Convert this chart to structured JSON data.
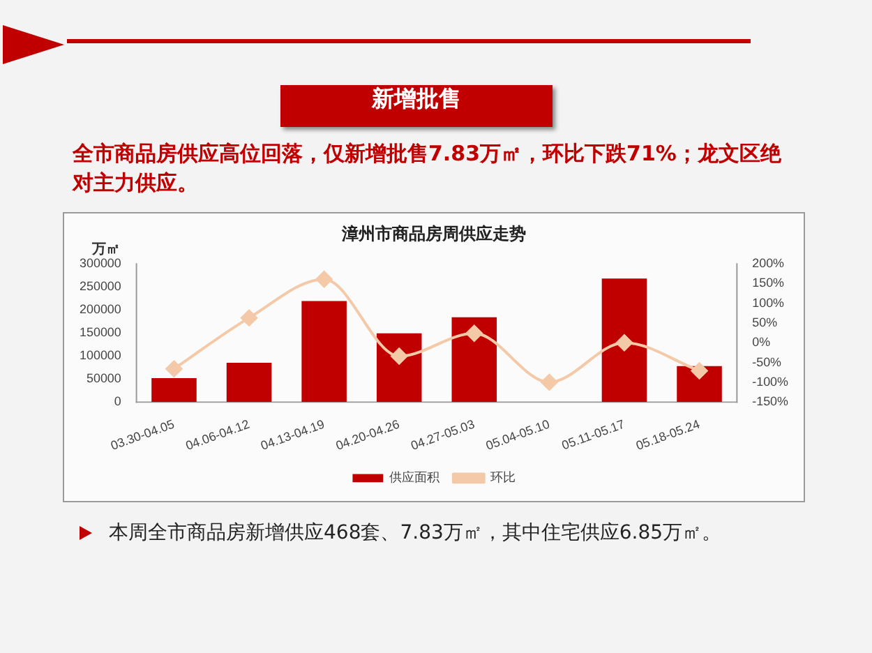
{
  "chart_data": {
    "type": "bar",
    "title": "漳州市商品房周供应走势",
    "ylabel": "万㎡",
    "categories": [
      "03.30-04.05",
      "04.06-04.12",
      "04.13-04.19",
      "04.20-04.26",
      "04.27-05.03",
      "05.04-05.10",
      "05.11-05.17",
      "05.18-05.24"
    ],
    "series": [
      {
        "name": "供应面积",
        "color": "#c00000",
        "values": [
          52000,
          85000,
          219000,
          149000,
          184000,
          0,
          268000,
          78000
        ]
      },
      {
        "name": "环比",
        "type": "line",
        "axis": "y2",
        "color": "#f4c9a8",
        "values": [
          -66,
          63,
          161,
          -34,
          24,
          -100,
          0,
          -71
        ]
      }
    ],
    "ylim": [
      0,
      300000
    ],
    "yticks": [
      0,
      50000,
      100000,
      150000,
      200000,
      250000,
      300000
    ],
    "y2lim": [
      -150,
      200
    ],
    "y2ticks": [
      {
        "value": -150,
        "label": "-150%"
      },
      {
        "value": -100,
        "label": "-100%"
      },
      {
        "value": -50,
        "label": "-50%"
      },
      {
        "value": 0,
        "label": "0%"
      },
      {
        "value": 50,
        "label": "50%"
      },
      {
        "value": 100,
        "label": "100%"
      },
      {
        "value": 150,
        "label": "150%"
      },
      {
        "value": 200,
        "label": "200%"
      }
    ],
    "marker": "diamond",
    "grid": false,
    "legend": "bottom",
    "annotations": [
      "新增批售",
      "全市商品房供应高位回落，仅新增批售7.83万㎡，环比下跌71%；龙文区绝对主力供应。",
      "本周全市商品房新增供应468套、7.83万㎡，其中住宅供应6.85万㎡。"
    ]
  }
}
